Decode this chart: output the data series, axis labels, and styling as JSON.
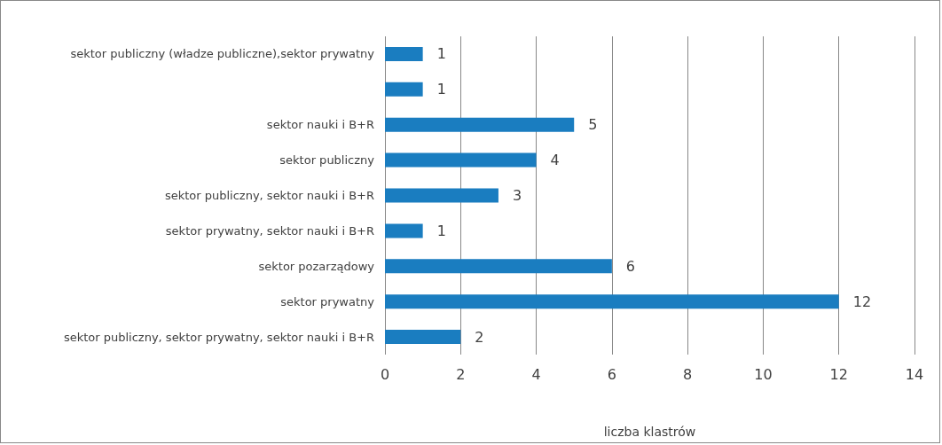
{
  "chart_data": {
    "type": "bar",
    "orientation": "horizontal",
    "categories": [
      "sektor publiczny (władze publiczne),sektor prywatny",
      null,
      "sektor nauki i B+R",
      "sektor publiczny",
      "sektor publiczny, sektor nauki i B+R",
      "sektor prywatny, sektor nauki i B+R",
      "sektor pozarządowy",
      "sektor prywatny",
      "sektor publiczny, sektor prywatny, sektor nauki i B+R"
    ],
    "values": [
      1,
      1,
      5,
      4,
      3,
      1,
      6,
      12,
      2
    ],
    "color": "#1a7dc0",
    "xlabel": "liczba klastrów",
    "xlim": [
      0,
      14
    ],
    "xticks": [
      0,
      2,
      4,
      6,
      8,
      10,
      12,
      14
    ],
    "grid": "x",
    "data_labels": true
  }
}
